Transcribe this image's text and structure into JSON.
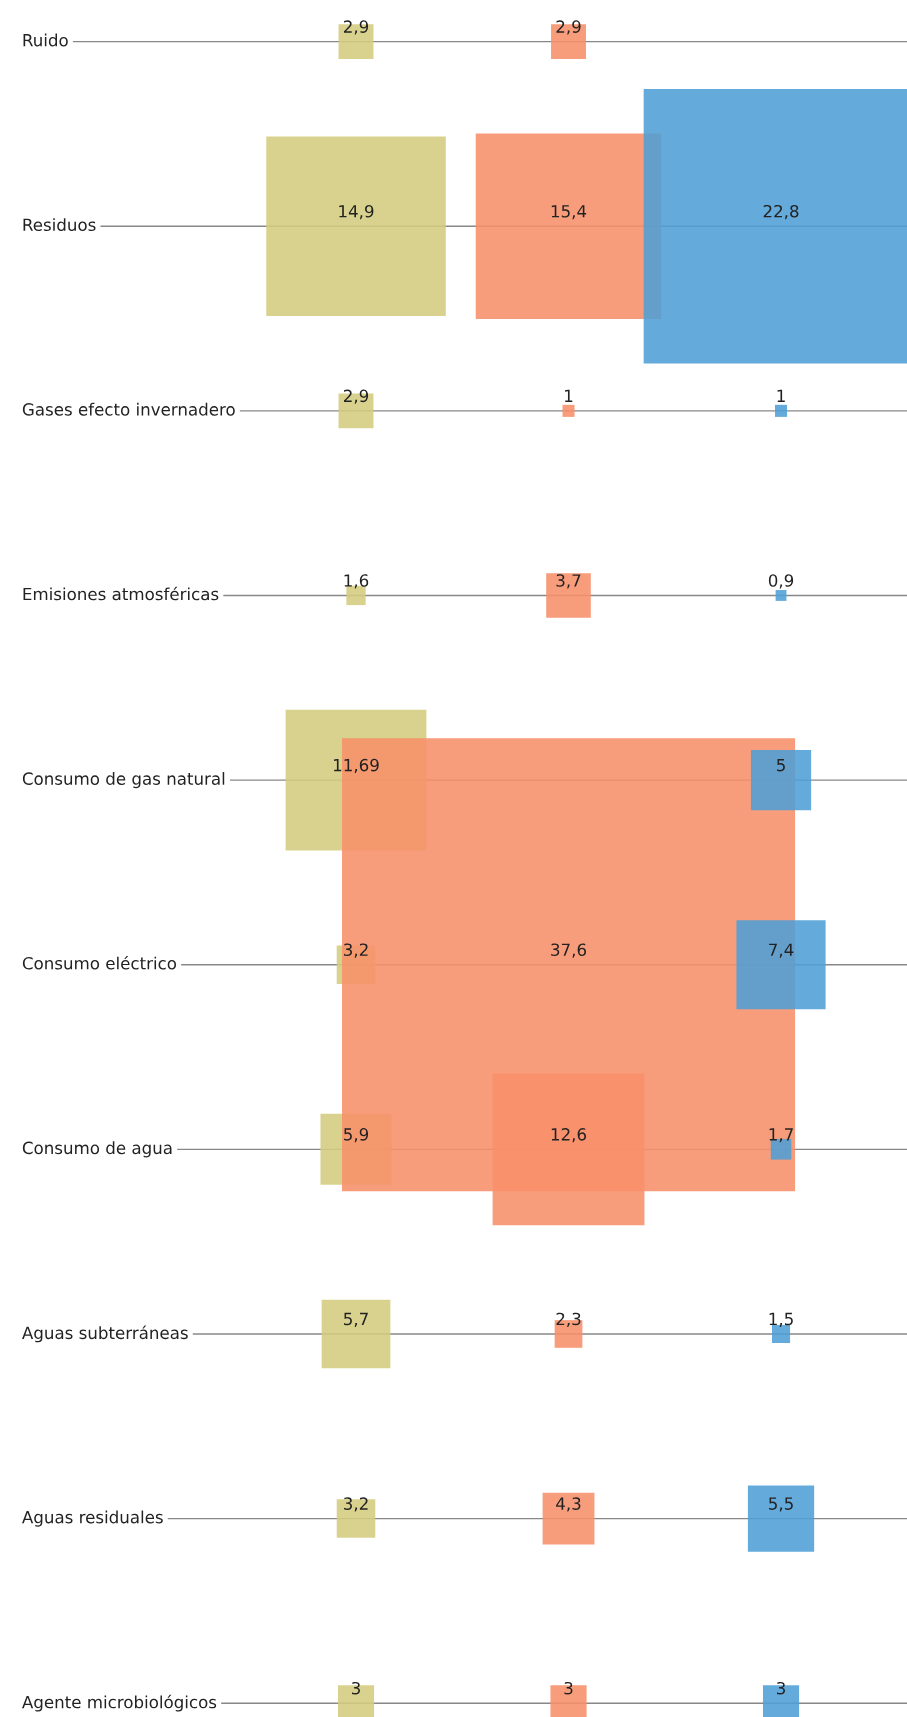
{
  "chart_data": {
    "type": "other",
    "categories": [
      "Ruido",
      "Residuos",
      "Gases efecto invernadero",
      "Emisiones atmosféricas",
      "Consumo de gas natural",
      "Consumo eléctrico",
      "Consumo de agua",
      "Aguas subterráneas",
      "Aguas residuales",
      "Agente microbiológicos"
    ],
    "series": [
      {
        "color": "#d4cc7e",
        "values": [
          2.9,
          14.9,
          2.9,
          1.6,
          11.69,
          3.2,
          5.9,
          5.7,
          3.2,
          3
        ],
        "value_labels": [
          "2,9",
          "14,9",
          "2,9",
          "1,6",
          "11,69",
          "3,2",
          "5,9",
          "5,7",
          "3,2",
          "3"
        ]
      },
      {
        "color": "#f7906a",
        "values": [
          2.9,
          15.4,
          1,
          3.7,
          null,
          37.6,
          12.6,
          2.3,
          4.3,
          3
        ],
        "value_labels": [
          "2,9",
          "15,4",
          "1",
          "3,7",
          null,
          "37,6",
          "12,6",
          "2,3",
          "4,3",
          "3"
        ]
      },
      {
        "color": "#4f9fd6",
        "values": [
          null,
          22.8,
          1,
          0.9,
          5,
          7.4,
          1.7,
          1.5,
          5.5,
          3
        ],
        "value_labels": [
          null,
          "22,8",
          "1",
          "0,9",
          "5",
          "7,4",
          "1,7",
          "1,5",
          "5,5",
          "3"
        ]
      }
    ]
  }
}
